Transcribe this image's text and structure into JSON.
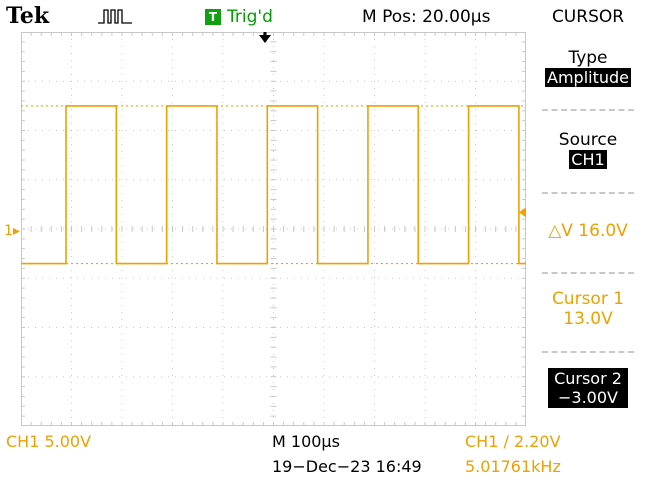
{
  "header": {
    "brand": "Tek",
    "trigger_state_badge": "T",
    "trigger_state": "Trig'd",
    "horizontal_position": "M Pos: 20.00µs",
    "menu_title": "CURSOR"
  },
  "side_menu": {
    "type_label": "Type",
    "type_value": "Amplitude",
    "source_label": "Source",
    "source_value": "CH1",
    "delta_readout": "△V 16.0V",
    "cursor1_label": "Cursor 1",
    "cursor1_value": "13.0V",
    "cursor2_label": "Cursor 2",
    "cursor2_value": "−3.00V"
  },
  "footer": {
    "ch1_scale": "CH1  5.00V",
    "timebase": "M 100µs",
    "datetime": "19−Dec−23 16:49",
    "trigger_info": "CH1  ∕  2.20V",
    "frequency": "5.01761kHz"
  },
  "channel_marker": "1",
  "waveform": {
    "high_v": 13.0,
    "low_v": -3.0,
    "period_us": 199.3,
    "volts_per_div": 5.0,
    "time_per_div_us": 100
  },
  "colors": {
    "trace": "#f0a000",
    "graticule": "#c8c8c8",
    "trig_green": "#00a000"
  },
  "icons": {
    "acquisition": "pulse-icon",
    "trigger_position": "trigger-arrow-icon"
  }
}
